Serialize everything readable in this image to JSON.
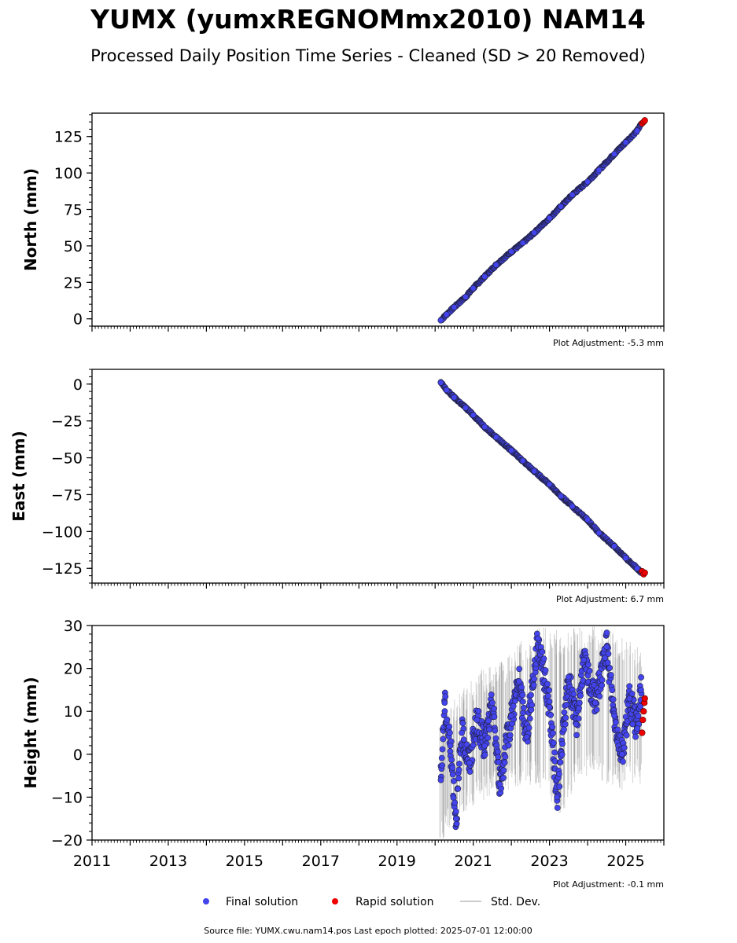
{
  "title": "YUMX (yumxREGNOMmx2010) NAM14",
  "subtitle": "Processed Daily Position Time Series - Cleaned (SD > 20 Removed)",
  "footer": "Source file: YUMX.cwu.nam14.pos  Last epoch plotted: 2025-07-01 12:00:00",
  "legend": {
    "final": "Final solution",
    "rapid": "Rapid solution",
    "std": "Std. Dev."
  },
  "colors": {
    "final": "#4444ee",
    "rapid": "#ee0000",
    "std": "#bbbbbb",
    "marker_edge": "#222244"
  },
  "chart_data": [
    {
      "type": "scatter",
      "ylabel": "North (mm)",
      "xlim": [
        2011,
        2026
      ],
      "ylim": [
        -5,
        141
      ],
      "yticks": [
        0,
        25,
        50,
        75,
        100,
        125
      ],
      "ytick_labels": [
        "0",
        "25",
        "50",
        "75",
        "100",
        "125"
      ],
      "adjustment": "Plot Adjustment: -5.3 mm",
      "final": [
        [
          2020.15,
          -1
        ],
        [
          2020.3,
          3
        ],
        [
          2020.5,
          8
        ],
        [
          2020.8,
          15
        ],
        [
          2021.0,
          21
        ],
        [
          2021.3,
          29
        ],
        [
          2021.6,
          37
        ],
        [
          2022.0,
          46
        ],
        [
          2022.3,
          52
        ],
        [
          2022.6,
          59
        ],
        [
          2023.0,
          69
        ],
        [
          2023.3,
          77
        ],
        [
          2023.6,
          85
        ],
        [
          2024.0,
          94
        ],
        [
          2024.3,
          102
        ],
        [
          2024.7,
          113
        ],
        [
          2025.0,
          121
        ],
        [
          2025.3,
          129
        ],
        [
          2025.42,
          134
        ]
      ],
      "rapid": [
        [
          2025.43,
          134
        ],
        [
          2025.47,
          135
        ],
        [
          2025.5,
          136
        ]
      ]
    },
    {
      "type": "scatter",
      "ylabel": "East (mm)",
      "xlim": [
        2011,
        2026
      ],
      "ylim": [
        -135,
        10
      ],
      "yticks": [
        0,
        -25,
        -50,
        -75,
        -100,
        -125
      ],
      "ytick_labels": [
        "0",
        "−25",
        "−50",
        "−75",
        "−100",
        "−125"
      ],
      "adjustment": "Plot Adjustment: 6.7 mm",
      "final": [
        [
          2020.15,
          1
        ],
        [
          2020.3,
          -4
        ],
        [
          2020.5,
          -9
        ],
        [
          2020.8,
          -16
        ],
        [
          2021.0,
          -21
        ],
        [
          2021.3,
          -29
        ],
        [
          2021.6,
          -36
        ],
        [
          2022.0,
          -45
        ],
        [
          2022.3,
          -52
        ],
        [
          2022.6,
          -59
        ],
        [
          2023.0,
          -68
        ],
        [
          2023.3,
          -76
        ],
        [
          2023.6,
          -83
        ],
        [
          2024.0,
          -92
        ],
        [
          2024.3,
          -101
        ],
        [
          2024.7,
          -110
        ],
        [
          2025.0,
          -118
        ],
        [
          2025.3,
          -125
        ],
        [
          2025.42,
          -128
        ]
      ],
      "rapid": [
        [
          2025.43,
          -127
        ],
        [
          2025.47,
          -129
        ],
        [
          2025.5,
          -128
        ]
      ]
    },
    {
      "type": "scatter",
      "ylabel": "Height (mm)",
      "xlim": [
        2011,
        2026
      ],
      "ylim": [
        -20,
        30
      ],
      "yticks": [
        -20,
        -10,
        0,
        10,
        20,
        30
      ],
      "ytick_labels": [
        "−20",
        "−10",
        "0",
        "10",
        "20",
        "30"
      ],
      "xticks": [
        2011,
        2013,
        2015,
        2017,
        2019,
        2021,
        2023,
        2025
      ],
      "xtick_labels": [
        "2011",
        "2013",
        "2015",
        "2017",
        "2019",
        "2021",
        "2023",
        "2025"
      ],
      "adjustment": "Plot Adjustment: -0.1 mm",
      "final": [
        [
          2020.15,
          -6
        ],
        [
          2020.25,
          12
        ],
        [
          2020.4,
          2
        ],
        [
          2020.55,
          -15
        ],
        [
          2020.7,
          5
        ],
        [
          2020.9,
          -2
        ],
        [
          2021.1,
          8
        ],
        [
          2021.3,
          2
        ],
        [
          2021.5,
          12
        ],
        [
          2021.7,
          -7
        ],
        [
          2022.0,
          9
        ],
        [
          2022.2,
          17
        ],
        [
          2022.4,
          4
        ],
        [
          2022.7,
          27
        ],
        [
          2023.0,
          11
        ],
        [
          2023.2,
          -10
        ],
        [
          2023.5,
          18
        ],
        [
          2023.7,
          7
        ],
        [
          2023.9,
          22
        ],
        [
          2024.2,
          12
        ],
        [
          2024.5,
          25
        ],
        [
          2024.7,
          9
        ],
        [
          2024.9,
          0
        ],
        [
          2025.1,
          13
        ],
        [
          2025.3,
          6
        ],
        [
          2025.4,
          15
        ]
      ],
      "rapid": [
        [
          2025.43,
          5
        ],
        [
          2025.45,
          8
        ],
        [
          2025.47,
          10
        ],
        [
          2025.49,
          12
        ],
        [
          2025.5,
          13
        ]
      ],
      "std_dev": [
        [
          2020.15,
          -18,
          8
        ],
        [
          2020.6,
          -12,
          14
        ],
        [
          2021.2,
          -8,
          20
        ],
        [
          2021.8,
          -6,
          22
        ],
        [
          2022.3,
          -4,
          27
        ],
        [
          2022.8,
          -5,
          30
        ],
        [
          2023.3,
          -12,
          29
        ],
        [
          2023.8,
          -2,
          30
        ],
        [
          2024.3,
          -3,
          30
        ],
        [
          2024.8,
          -6,
          28
        ],
        [
          2025.2,
          -4,
          26
        ]
      ]
    }
  ]
}
